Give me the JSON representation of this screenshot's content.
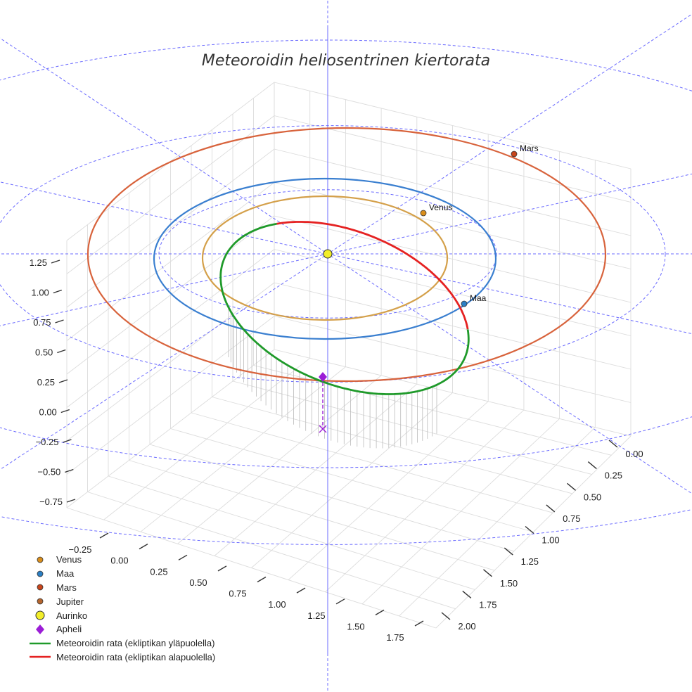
{
  "chart_data": {
    "type": "line",
    "title": "Meteoroidin heliosentrinen kiertorata",
    "projection": "3d",
    "axes": {
      "x_ticks": [
        "−0.25",
        "0.00",
        "0.25",
        "0.50",
        "0.75",
        "1.00",
        "1.25",
        "1.50",
        "1.75"
      ],
      "y_ticks": [
        "0.00",
        "0.25",
        "0.50",
        "0.75",
        "1.00",
        "1.25",
        "1.50",
        "1.75",
        "2.00"
      ],
      "z_ticks": [
        "−0.75",
        "−0.50",
        "−0.25",
        "0.00",
        "0.25",
        "0.50",
        "0.75",
        "1.00",
        "1.25"
      ]
    },
    "planet_orbits": [
      {
        "name": "Venus",
        "radius_au": 0.72,
        "color": "#d4a04a"
      },
      {
        "name": "Maa",
        "radius_au": 1.0,
        "color": "#3a7fd0"
      },
      {
        "name": "Mars",
        "radius_au": 1.52,
        "color": "#d8633c"
      }
    ],
    "planets": [
      {
        "name": "Venus",
        "label": "Venus",
        "color": "#d98e1c"
      },
      {
        "name": "Maa",
        "label": "Maa",
        "color": "#2b7fc4"
      },
      {
        "name": "Mars",
        "label": "Mars",
        "color": "#c8451c"
      }
    ],
    "meteoroid_orbit": {
      "above_ecliptic_color": "#1f9a2a",
      "below_ecliptic_color": "#e52222"
    },
    "aphelion_marker_color": "#9b1dd6",
    "sun_color": "#f2ee2a",
    "grid": true,
    "legend_position": "bottom-left",
    "legend": [
      {
        "label": "Venus",
        "symbol": "dot",
        "color": "#d98e1c"
      },
      {
        "label": "Maa",
        "symbol": "dot",
        "color": "#2b7fc4"
      },
      {
        "label": "Mars",
        "symbol": "dot",
        "color": "#c8451c"
      },
      {
        "label": "Jupiter",
        "symbol": "dot",
        "color": "#b5652e"
      },
      {
        "label": "Aurinko",
        "symbol": "sun",
        "color": "#f2ee2a"
      },
      {
        "label": "Apheli",
        "symbol": "diamond",
        "color": "#9b1dd6"
      },
      {
        "label": "Meteoroidin rata (ekliptikan yläpuolella)",
        "symbol": "line",
        "color": "#1f9a2a"
      },
      {
        "label": "Meteoroidin rata (ekliptikan alapuolella)",
        "symbol": "line",
        "color": "#e52222"
      }
    ]
  }
}
